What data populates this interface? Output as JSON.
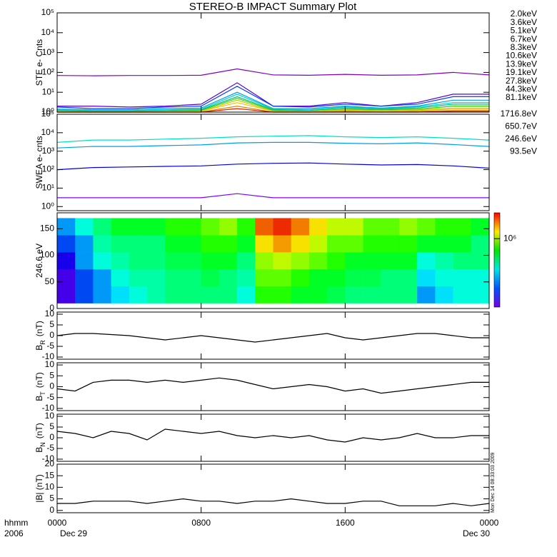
{
  "chart_data": [
    {
      "type": "line",
      "title": "STEREO-B IMPACT Summary Plot",
      "ylabel": "STE e- Cnts",
      "log": true,
      "xlim": [
        0,
        24
      ],
      "ylim": [
        1,
        100000
      ],
      "yticks": [
        {
          "value": 1,
          "label": "10⁰"
        },
        {
          "value": 10,
          "label": "10¹"
        },
        {
          "value": 100,
          "label": "10²"
        },
        {
          "value": 1000,
          "label": "10³"
        },
        {
          "value": 10000,
          "label": "10⁴"
        },
        {
          "value": 100000,
          "label": "10⁵"
        }
      ],
      "x": [
        0,
        2,
        4,
        6,
        8,
        10,
        12,
        14,
        16,
        18,
        20,
        22,
        24
      ],
      "series": [
        {
          "name": "2.0keV",
          "color": "#8000c0",
          "values": [
            70,
            68,
            70,
            70,
            72,
            150,
            75,
            72,
            80,
            72,
            75,
            100,
            75
          ]
        },
        {
          "name": "3.6keV",
          "color": "#5a00d8",
          "values": [
            2,
            2,
            1.8,
            2,
            2.5,
            30,
            2,
            2,
            3,
            2,
            3,
            8,
            8
          ]
        },
        {
          "name": "5.1keV",
          "color": "#0040ff",
          "values": [
            1.8,
            1.5,
            1.5,
            1.8,
            2,
            20,
            2,
            1.8,
            2.5,
            2,
            2.5,
            6,
            6
          ]
        },
        {
          "name": "6.7keV",
          "color": "#00a0e0",
          "values": [
            1.4,
            1.3,
            1.3,
            1.5,
            1.6,
            10,
            1.5,
            1.5,
            2,
            1.6,
            2,
            4,
            4
          ]
        },
        {
          "name": "8.3keV",
          "color": "#00d0c8",
          "values": [
            1.3,
            1.2,
            1.2,
            1.3,
            1.4,
            8,
            1.4,
            1.3,
            1.8,
            1.5,
            1.8,
            3,
            3
          ]
        },
        {
          "name": "10.6keV",
          "color": "#00c080",
          "values": [
            1.2,
            1.1,
            1.1,
            1.2,
            1.3,
            6,
            1.3,
            1.2,
            1.6,
            1.4,
            1.6,
            2.5,
            2.5
          ]
        },
        {
          "name": "13.9keV",
          "color": "#40c800",
          "values": [
            1.1,
            1.1,
            1.1,
            1.1,
            1.2,
            5,
            1.2,
            1.1,
            1.4,
            1.3,
            1.4,
            2,
            2
          ]
        },
        {
          "name": "19.1keV",
          "color": "#b8d000",
          "values": [
            1.1,
            1,
            1,
            1.1,
            1.1,
            4,
            1.1,
            1.1,
            1.3,
            1.2,
            1.3,
            1.6,
            1.6
          ]
        },
        {
          "name": "27.8keV",
          "color": "#f0c000",
          "values": [
            1,
            1,
            1,
            1,
            1.1,
            3,
            1.1,
            1,
            1.2,
            1.1,
            1.2,
            1.4,
            1.4
          ]
        },
        {
          "name": "44.3keV",
          "color": "#f08000",
          "values": [
            1,
            1,
            1,
            1,
            1,
            2,
            1,
            1,
            1.1,
            1,
            1.1,
            1.2,
            1.2
          ]
        },
        {
          "name": "81.1keV",
          "color": "#e02000",
          "values": [
            1,
            1,
            1,
            1,
            1,
            1.5,
            1,
            1,
            1,
            1,
            1,
            1.1,
            1.1
          ]
        }
      ]
    },
    {
      "type": "line",
      "ylabel": "SWEA e- cnts",
      "log": true,
      "xlim": [
        0,
        24
      ],
      "ylim": [
        0.6,
        100000
      ],
      "yticks": [
        {
          "value": 1,
          "label": "10⁰"
        },
        {
          "value": 10,
          "label": "10¹"
        },
        {
          "value": 100,
          "label": "10²"
        },
        {
          "value": 1000,
          "label": "10³"
        },
        {
          "value": 10000,
          "label": "10⁴"
        },
        {
          "value": 100000,
          "label": "10⁵"
        }
      ],
      "x": [
        0,
        2,
        4,
        6,
        8,
        10,
        12,
        14,
        16,
        18,
        20,
        22,
        24
      ],
      "series": [
        {
          "name": "1716.8eV",
          "color": "#8000ff",
          "values": [
            3,
            3,
            3,
            3,
            3,
            5,
            3,
            3,
            3,
            3,
            3,
            3,
            3
          ]
        },
        {
          "name": "650.7eV",
          "color": "#0000e0",
          "values": [
            100,
            130,
            140,
            150,
            160,
            200,
            220,
            230,
            200,
            180,
            190,
            160,
            120
          ]
        },
        {
          "name": "246.6eV",
          "color": "#00a0e0",
          "values": [
            1500,
            1800,
            1800,
            2000,
            2200,
            2800,
            3000,
            3000,
            2700,
            2500,
            2800,
            2300,
            1800
          ]
        },
        {
          "name": "93.5eV",
          "color": "#00e0c0",
          "values": [
            3000,
            4000,
            4000,
            4500,
            5000,
            6000,
            6500,
            7000,
            6000,
            5500,
            6000,
            5000,
            4000
          ]
        }
      ]
    },
    {
      "type": "heatmap",
      "ylabel": "246.6 eV",
      "xlim": [
        0,
        24
      ],
      "ylim": [
        0,
        180
      ],
      "yticks": [
        0,
        50,
        100,
        150
      ],
      "zlim": [
        160000,
        2000000
      ],
      "zlog": true,
      "cticks": [
        {
          "value": 1000000,
          "label": "10⁶"
        }
      ],
      "xbins": [
        0,
        1,
        2,
        3,
        4,
        5,
        6,
        7,
        8,
        9,
        10,
        11,
        12,
        13,
        14,
        15,
        16,
        17,
        18,
        19,
        20,
        21,
        22,
        23,
        24
      ],
      "ybins": [
        10,
        42,
        74,
        106,
        138,
        170
      ],
      "z": [
        [
          180000,
          250000,
          300000,
          350000,
          400000,
          450000,
          500000,
          500000,
          500000,
          500000,
          400000,
          700000,
          700000,
          600000,
          600000,
          550000,
          500000,
          500000,
          500000,
          500000,
          300000,
          350000,
          400000,
          400000
        ],
        [
          180000,
          250000,
          300000,
          400000,
          450000,
          450000,
          500000,
          500000,
          550000,
          500000,
          450000,
          800000,
          800000,
          700000,
          600000,
          600000,
          550000,
          550000,
          500000,
          500000,
          350000,
          400000,
          400000,
          400000
        ],
        [
          200000,
          300000,
          400000,
          450000,
          500000,
          500000,
          550000,
          550000,
          600000,
          600000,
          500000,
          900000,
          1000000,
          900000,
          800000,
          700000,
          600000,
          600000,
          600000,
          600000,
          400000,
          450000,
          500000,
          500000
        ],
        [
          250000,
          300000,
          450000,
          500000,
          500000,
          500000,
          600000,
          600000,
          700000,
          700000,
          600000,
          1200000,
          1400000,
          1200000,
          1000000,
          800000,
          800000,
          700000,
          700000,
          700000,
          600000,
          600000,
          600000,
          500000
        ],
        [
          300000,
          400000,
          500000,
          600000,
          600000,
          600000,
          700000,
          700000,
          800000,
          900000,
          700000,
          1600000,
          1800000,
          1500000,
          1200000,
          1000000,
          1000000,
          800000,
          800000,
          900000,
          800000,
          700000,
          700000,
          600000
        ]
      ]
    },
    {
      "type": "line",
      "ylabel": "B",
      "ylabel_sub": "R",
      "ylabel_unit": "(nT)",
      "xlim": [
        0,
        24
      ],
      "ylim": [
        -11,
        11
      ],
      "yticks": [
        -10,
        -5,
        0,
        5,
        10
      ],
      "x": [
        0,
        1,
        2,
        3,
        4,
        5,
        6,
        7,
        8,
        9,
        10,
        11,
        12,
        13,
        14,
        15,
        16,
        17,
        18,
        19,
        20,
        21,
        22,
        23,
        24
      ],
      "series": [
        {
          "color": "#000000",
          "values": [
            0,
            1,
            1,
            0.5,
            0,
            -1,
            -2,
            -1,
            0,
            -1,
            -2,
            -3,
            -2,
            -1,
            0,
            1,
            -1,
            -2,
            -1,
            0,
            1,
            1,
            0,
            -1,
            -1
          ]
        }
      ]
    },
    {
      "type": "line",
      "ylabel": "B",
      "ylabel_sub": "T",
      "ylabel_unit": "(nT)",
      "xlim": [
        0,
        24
      ],
      "ylim": [
        -11,
        11
      ],
      "yticks": [
        -10,
        -5,
        0,
        5,
        10
      ],
      "x": [
        0,
        1,
        2,
        3,
        4,
        5,
        6,
        7,
        8,
        9,
        10,
        11,
        12,
        13,
        14,
        15,
        16,
        17,
        18,
        19,
        20,
        21,
        22,
        23,
        24
      ],
      "series": [
        {
          "color": "#000000",
          "values": [
            -1,
            -2,
            2,
            3,
            3,
            2,
            3,
            2,
            3,
            4,
            3,
            1,
            -1,
            0,
            1,
            0,
            -2,
            -1,
            -3,
            -2,
            -1,
            0,
            1,
            2,
            2
          ]
        }
      ]
    },
    {
      "type": "line",
      "ylabel": "B",
      "ylabel_sub": "N",
      "ylabel_unit": "(nT)",
      "xlim": [
        0,
        24
      ],
      "ylim": [
        -11,
        11
      ],
      "yticks": [
        -10,
        -5,
        0,
        5,
        10
      ],
      "x": [
        0,
        1,
        2,
        3,
        4,
        5,
        6,
        7,
        8,
        9,
        10,
        11,
        12,
        13,
        14,
        15,
        16,
        17,
        18,
        19,
        20,
        21,
        22,
        23,
        24
      ],
      "series": [
        {
          "color": "#000000",
          "values": [
            3,
            2,
            0,
            3,
            2,
            -1,
            4,
            3,
            2,
            3,
            1,
            0,
            1,
            0,
            1,
            -1,
            -2,
            0,
            -1,
            0,
            2,
            0,
            0,
            1,
            1
          ]
        }
      ]
    },
    {
      "type": "line",
      "ylabel": "|B| (nT)",
      "xlim": [
        0,
        24
      ],
      "ylim": [
        -1,
        20
      ],
      "yticks": [
        0,
        5,
        10,
        15,
        20
      ],
      "x": [
        0,
        1,
        2,
        3,
        4,
        5,
        6,
        7,
        8,
        9,
        10,
        11,
        12,
        13,
        14,
        15,
        16,
        17,
        18,
        19,
        20,
        21,
        22,
        23,
        24
      ],
      "series": [
        {
          "color": "#000000",
          "values": [
            3,
            3,
            4,
            4,
            4,
            3,
            4,
            5,
            4,
            4,
            3,
            4,
            4,
            5,
            4,
            3,
            3,
            4,
            4,
            2,
            2,
            2,
            3,
            2,
            3
          ]
        }
      ],
      "xticks": [
        {
          "value": 0,
          "label": "0000"
        },
        {
          "value": 8,
          "label": "0800"
        },
        {
          "value": 16,
          "label": "1600"
        },
        {
          "value": 24,
          "label": "0000"
        }
      ],
      "start_date": "Dec 29",
      "end_date": "Dec 30",
      "xlabel": "hhmm",
      "year": "2006",
      "stamp": "Mon Dec 14 08:33:03 2009"
    }
  ]
}
